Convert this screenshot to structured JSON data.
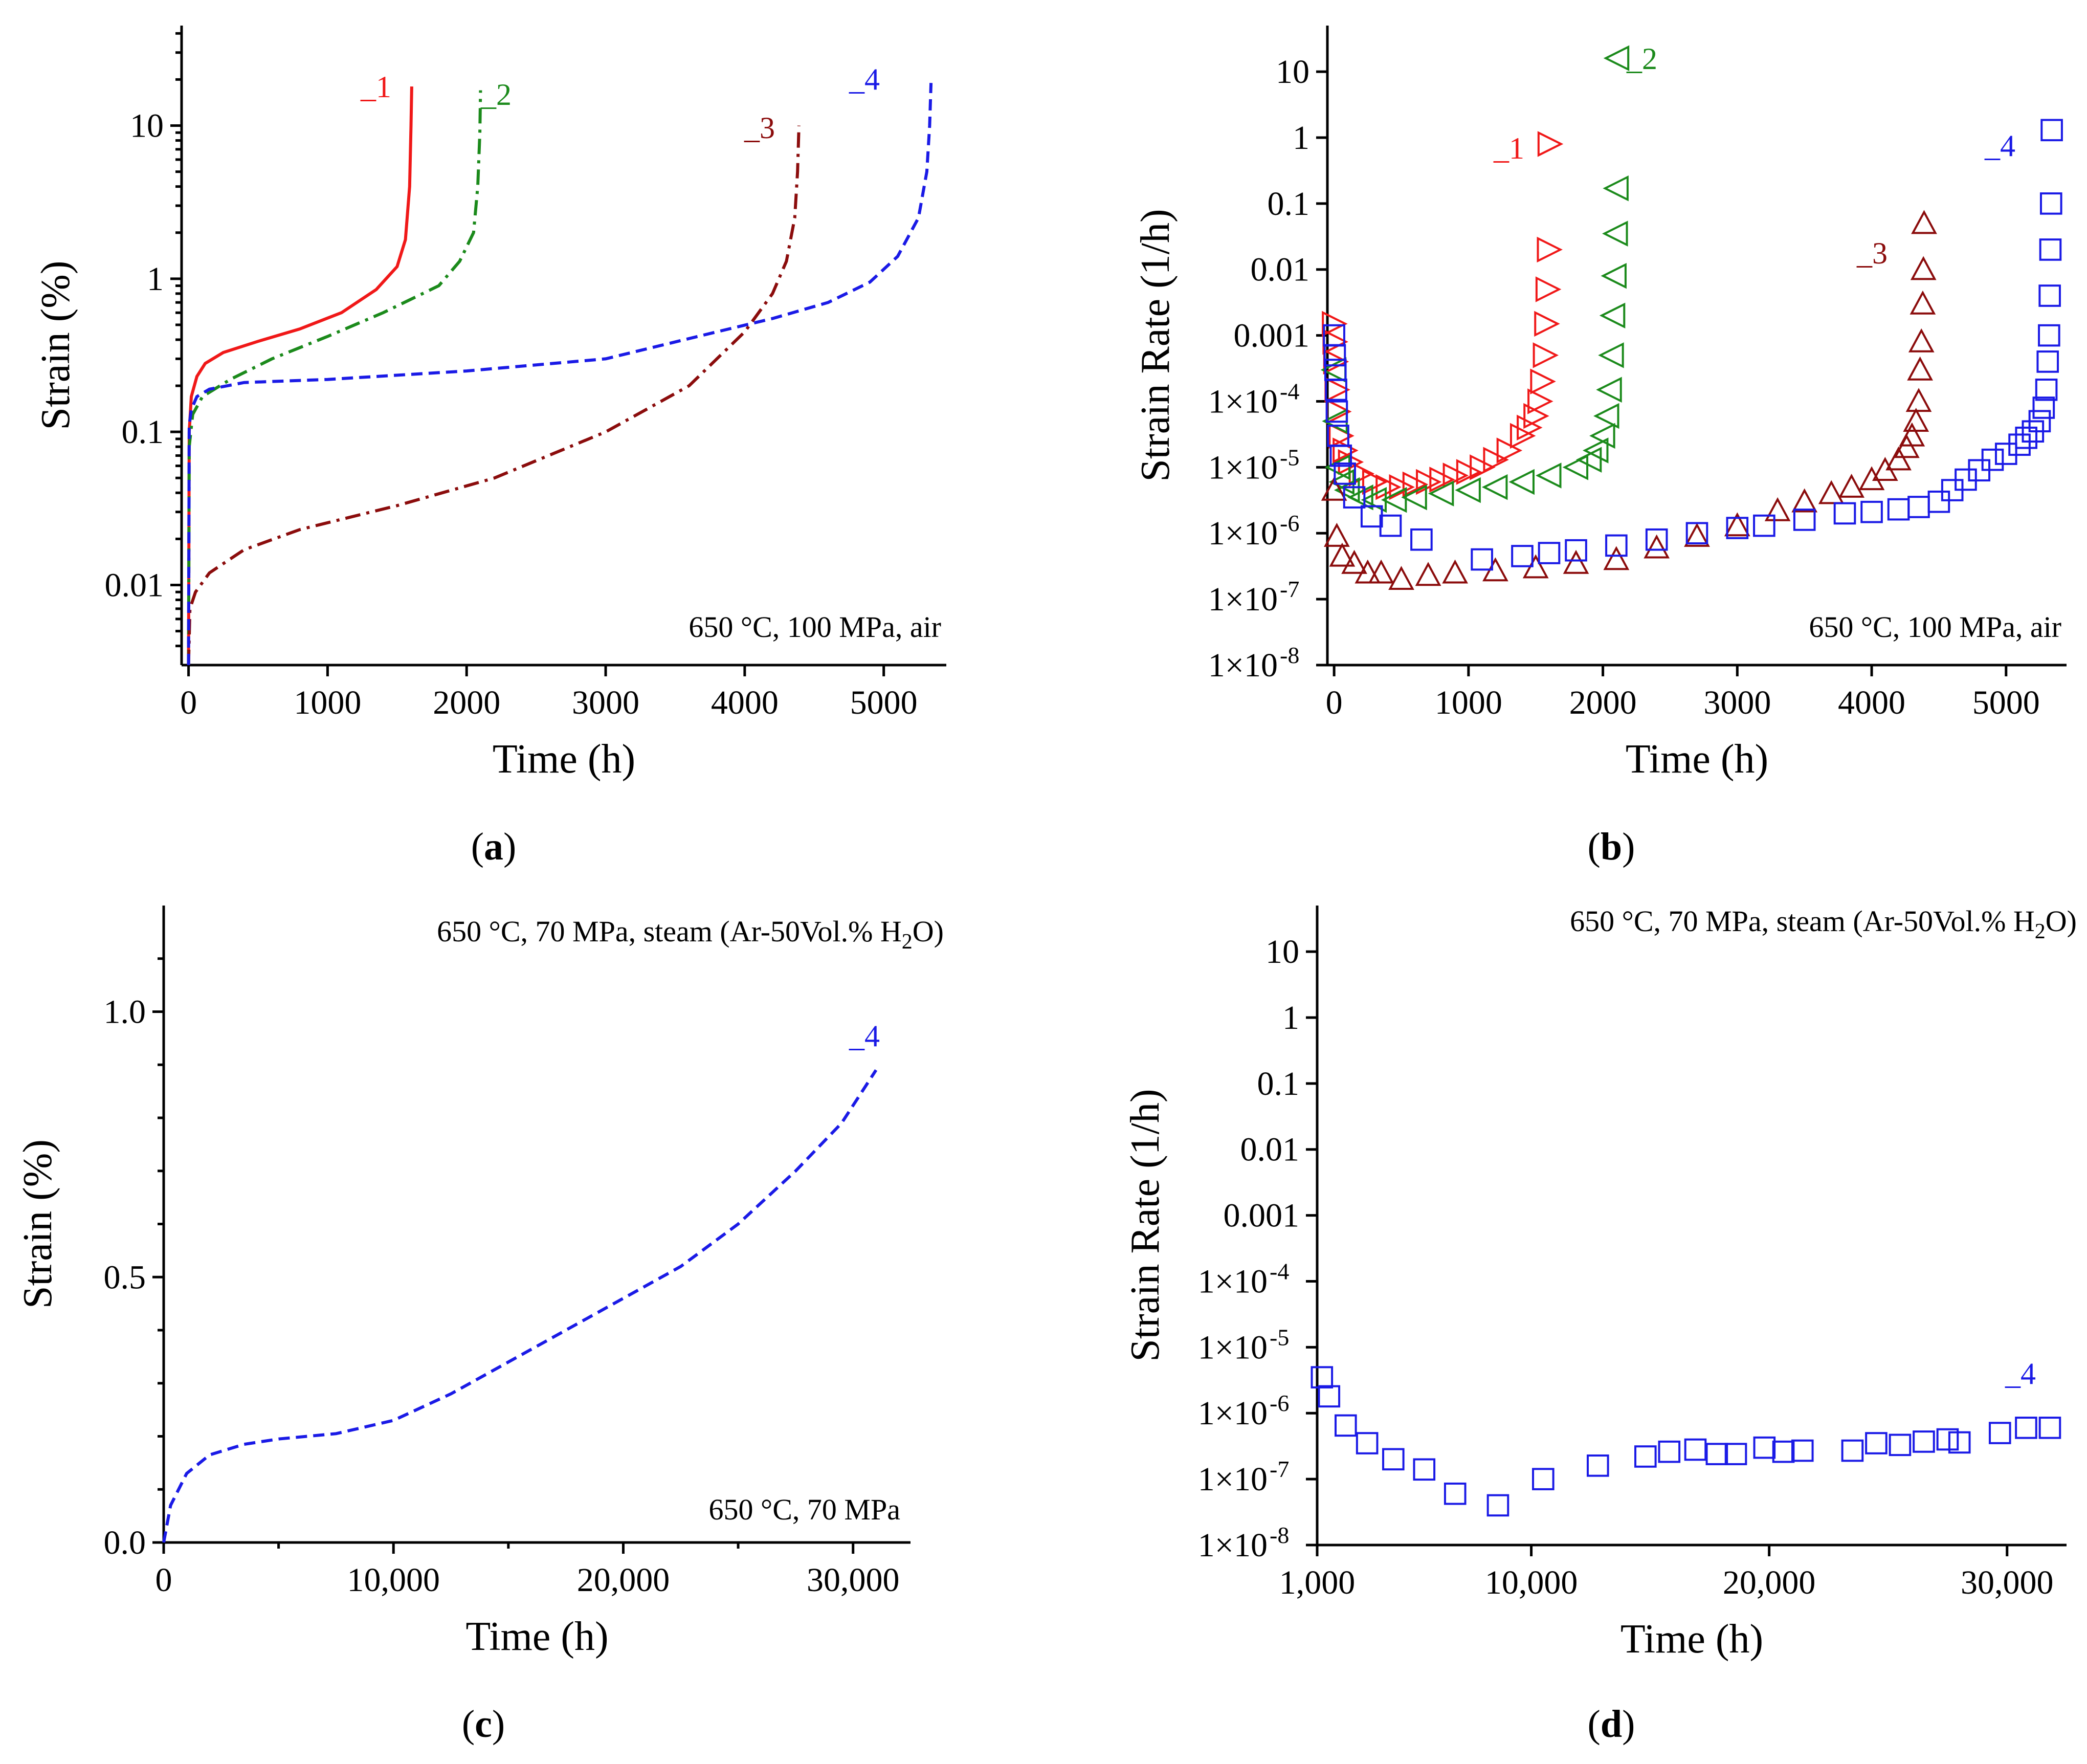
{
  "colors": {
    "series1": "#f01818",
    "series2": "#1b8a1b",
    "series3": "#8b0c0c",
    "series4": "#1a1ae6"
  },
  "chart_data": [
    {
      "id": "a",
      "type": "line",
      "panel_label": "a",
      "xlabel": "Time (h)",
      "ylabel": "Strain (%)",
      "xscale": "linear",
      "yscale": "log",
      "xlim": [
        -50,
        5450
      ],
      "ylim": [
        0.003,
        45
      ],
      "xticks": [
        0,
        1000,
        2000,
        3000,
        4000,
        5000
      ],
      "xtick_labels": [
        "0",
        "1000",
        "2000",
        "3000",
        "4000",
        "5000"
      ],
      "yticks": [
        0.01,
        0.1,
        1,
        10
      ],
      "ytick_labels": [
        "0.01",
        "0.1",
        "1",
        "10"
      ],
      "annotation": "650 °C, 100 MPa, air",
      "series": [
        {
          "name": "_1",
          "color": "series1",
          "dash": "solid",
          "x": [
            0,
            5,
            20,
            60,
            120,
            250,
            500,
            800,
            1100,
            1350,
            1500,
            1560,
            1590,
            1600,
            1605
          ],
          "y": [
            0.003,
            0.1,
            0.17,
            0.23,
            0.28,
            0.33,
            0.39,
            0.47,
            0.6,
            0.85,
            1.2,
            1.8,
            4,
            10,
            18
          ]
        },
        {
          "name": "_2",
          "color": "series2",
          "dash": "dashdot",
          "x": [
            0,
            5,
            30,
            100,
            300,
            600,
            1000,
            1400,
            1800,
            1950,
            2050,
            2080,
            2095,
            2100
          ],
          "y": [
            0.003,
            0.08,
            0.13,
            0.17,
            0.22,
            0.3,
            0.42,
            0.6,
            0.9,
            1.3,
            2,
            4,
            9,
            17
          ]
        },
        {
          "name": "_3",
          "color": "series3",
          "dash": "dashdot",
          "x": [
            0,
            10,
            50,
            150,
            400,
            800,
            1500,
            2200,
            3000,
            3600,
            4000,
            4200,
            4300,
            4360,
            4380,
            4390
          ],
          "y": [
            0.003,
            0.007,
            0.009,
            0.012,
            0.017,
            0.023,
            0.033,
            0.05,
            0.1,
            0.2,
            0.45,
            0.8,
            1.3,
            2.5,
            5,
            10
          ]
        },
        {
          "name": "_4",
          "color": "series4",
          "dash": "dashed",
          "x": [
            0,
            5,
            20,
            60,
            150,
            400,
            1000,
            2000,
            3000,
            3800,
            4200,
            4600,
            4900,
            5100,
            5250,
            5310,
            5330,
            5340
          ],
          "y": [
            0.003,
            0.11,
            0.14,
            0.17,
            0.19,
            0.21,
            0.22,
            0.25,
            0.3,
            0.45,
            0.55,
            0.7,
            0.95,
            1.4,
            2.5,
            5,
            10,
            19
          ]
        }
      ]
    },
    {
      "id": "b",
      "type": "scatter",
      "panel_label": "b",
      "xlabel": "Time (h)",
      "ylabel": "Strain Rate (1/h)",
      "xscale": "linear",
      "yscale": "log",
      "xlim": [
        -50,
        5450
      ],
      "ylim": [
        1e-08,
        50
      ],
      "xticks": [
        0,
        1000,
        2000,
        3000,
        4000,
        5000
      ],
      "xtick_labels": [
        "0",
        "1000",
        "2000",
        "3000",
        "4000",
        "5000"
      ],
      "yticks": [
        1e-08,
        1e-07,
        1e-06,
        1e-05,
        0.0001,
        0.001,
        0.01,
        0.1,
        1,
        10
      ],
      "ytick_labels": [
        "1×10",
        "1×10",
        "1×10",
        "1×10",
        "1×10",
        "0.001",
        "0.01",
        "0.1",
        "1",
        "10"
      ],
      "ytick_exponents": [
        "-8",
        "-7",
        "-6",
        "-5",
        "-4",
        "",
        "",
        "",
        "",
        ""
      ],
      "annotation": "650 °C, 100 MPa, air",
      "series": [
        {
          "name": "_1",
          "color": "series1",
          "marker": "triangle-right",
          "x": [
            0,
            5,
            10,
            20,
            30,
            50,
            80,
            120,
            200,
            300,
            400,
            500,
            600,
            700,
            800,
            900,
            1000,
            1100,
            1200,
            1300,
            1400,
            1450,
            1500,
            1530,
            1550,
            1570,
            1580,
            1590,
            1600,
            1605
          ],
          "y": [
            0.0015,
            0.0008,
            0.0004,
            0.00015,
            7e-05,
            3e-05,
            1.8e-05,
            1.2e-05,
            8e-06,
            6e-06,
            5e-06,
            5e-06,
            5.5e-06,
            6e-06,
            6.5e-06,
            7.5e-06,
            8.5e-06,
            1e-05,
            1.3e-05,
            1.8e-05,
            3e-05,
            4e-05,
            6e-05,
            0.0001,
            0.0002,
            0.0005,
            0.0015,
            0.005,
            0.02,
            0.8
          ]
        },
        {
          "name": "_2",
          "color": "series2",
          "marker": "triangle-left",
          "x": [
            0,
            10,
            30,
            60,
            100,
            200,
            300,
            450,
            600,
            800,
            1000,
            1200,
            1400,
            1600,
            1800,
            1900,
            1950,
            2000,
            2030,
            2050,
            2065,
            2075,
            2085,
            2095,
            2100,
            2105
          ],
          "y": [
            0.0003,
            5e-05,
            1e-05,
            6e-06,
            4.5e-06,
            3.5e-06,
            3.2e-06,
            3.2e-06,
            3.5e-06,
            4e-06,
            4.5e-06,
            5e-06,
            6e-06,
            7.5e-06,
            1e-05,
            1.3e-05,
            1.8e-05,
            3e-05,
            6e-05,
            0.00015,
            0.0005,
            0.002,
            0.008,
            0.035,
            0.17,
            16
          ]
        },
        {
          "name": "_3",
          "color": "series3",
          "marker": "triangle-up",
          "x": [
            0,
            20,
            60,
            150,
            250,
            350,
            500,
            700,
            900,
            1200,
            1500,
            1800,
            2100,
            2400,
            2700,
            3000,
            3300,
            3500,
            3700,
            3850,
            4000,
            4100,
            4200,
            4260,
            4300,
            4330,
            4350,
            4360,
            4370,
            4380,
            4385,
            4390
          ],
          "y": [
            4.5e-06,
            9e-07,
            4.5e-07,
            3.5e-07,
            2.5e-07,
            2.5e-07,
            2e-07,
            2.3e-07,
            2.5e-07,
            2.7e-07,
            3e-07,
            3.5e-07,
            4e-07,
            6e-07,
            9e-07,
            1.3e-06,
            2.2e-06,
            3e-06,
            4e-06,
            5e-06,
            6.5e-06,
            9e-06,
            1.3e-05,
            2e-05,
            3e-05,
            5e-05,
            0.0001,
            0.0003,
            0.0008,
            0.003,
            0.01,
            0.05
          ]
        },
        {
          "name": "_4",
          "color": "series4",
          "marker": "square",
          "x": [
            0,
            5,
            10,
            15,
            20,
            30,
            50,
            80,
            150,
            280,
            420,
            650,
            1100,
            1400,
            1600,
            1800,
            2100,
            2400,
            2700,
            3000,
            3200,
            3500,
            3800,
            4000,
            4200,
            4350,
            4500,
            4600,
            4700,
            4800,
            4900,
            5000,
            5100,
            5150,
            5200,
            5250,
            5280,
            5300,
            5310,
            5320,
            5325,
            5330,
            5335,
            5340
          ],
          "y": [
            0.001,
            0.0005,
            0.0003,
            0.00015,
            7e-05,
            3e-05,
            1.5e-05,
            8e-06,
            3.5e-06,
            1.8e-06,
            1.3e-06,
            8e-07,
            4e-07,
            4.5e-07,
            5e-07,
            5.5e-07,
            6.5e-07,
            8e-07,
            1e-06,
            1.2e-06,
            1.3e-06,
            1.6e-06,
            2e-06,
            2.1e-06,
            2.3e-06,
            2.5e-06,
            3e-06,
            4.5e-06,
            6.5e-06,
            9e-06,
            1.3e-05,
            1.6e-05,
            2.2e-05,
            2.8e-05,
            3.5e-05,
            5e-05,
            8e-05,
            0.00015,
            0.0004,
            0.001,
            0.004,
            0.02,
            0.1,
            1.3
          ]
        }
      ]
    },
    {
      "id": "c",
      "type": "line",
      "panel_label": "c",
      "xlabel": "Time (h)",
      "ylabel": "Strain (%)",
      "xscale": "linear",
      "yscale": "linear",
      "xlim": [
        0,
        32500
      ],
      "ylim": [
        0,
        1.2
      ],
      "xticks": [
        0,
        10000,
        20000,
        30000
      ],
      "xtick_labels": [
        "0",
        "10,000",
        "20,000",
        "30,000"
      ],
      "xticks_minor": [
        5000,
        15000,
        25000
      ],
      "yticks": [
        0,
        0.5,
        1.0
      ],
      "ytick_labels": [
        "0.0",
        "0.5",
        "1.0"
      ],
      "yticks_minor": [
        0.1,
        0.2,
        0.3,
        0.4,
        0.6,
        0.7,
        0.8,
        0.9,
        1.1
      ],
      "annotation_top": "650 °C, 70 MPa, steam (Ar-50Vol.% H",
      "annotation_top_sub": "2",
      "annotation_top_end": "O)",
      "annotation": "650 °C, 70 MPa",
      "series": [
        {
          "name": "_4",
          "color": "series4",
          "dash": "dashed",
          "x": [
            0,
            300,
            1000,
            2000,
            3500,
            5000,
            7500,
            10000,
            12500,
            15000,
            17500,
            20000,
            22500,
            25000,
            27500,
            29500,
            31000
          ],
          "y": [
            0,
            0.07,
            0.13,
            0.165,
            0.185,
            0.195,
            0.205,
            0.23,
            0.28,
            0.34,
            0.4,
            0.46,
            0.52,
            0.6,
            0.7,
            0.79,
            0.89
          ]
        }
      ]
    },
    {
      "id": "d",
      "type": "scatter",
      "panel_label": "d",
      "xlabel": "Time (h)",
      "ylabel": "Strain Rate (1/h)",
      "xscale": "linear",
      "yscale": "log",
      "xlim": [
        1000,
        32500
      ],
      "ylim": [
        1e-08,
        50
      ],
      "xticks": [
        1000,
        10000,
        20000,
        30000
      ],
      "xtick_labels": [
        "1,000",
        "10,000",
        "20,000",
        "30,000"
      ],
      "yticks": [
        1e-08,
        1e-07,
        1e-06,
        1e-05,
        0.0001,
        0.001,
        0.01,
        0.1,
        1,
        10
      ],
      "ytick_labels": [
        "1×10",
        "1×10",
        "1×10",
        "1×10",
        "1×10",
        "0.001",
        "0.01",
        "0.1",
        "1",
        "10"
      ],
      "ytick_exponents": [
        "-8",
        "-7",
        "-6",
        "-5",
        "-4",
        "",
        "",
        "",
        "",
        ""
      ],
      "annotation_top": "650 °C, 70 MPa, steam (Ar-50Vol.% H",
      "annotation_top_sub": "2",
      "annotation_top_end": "O)",
      "series": [
        {
          "name": "_4",
          "color": "series4",
          "marker": "square",
          "x": [
            1200,
            1500,
            2200,
            3100,
            4200,
            5500,
            6800,
            8600,
            10500,
            12800,
            14800,
            15800,
            16900,
            17800,
            18600,
            19800,
            20600,
            21400,
            23500,
            24500,
            25500,
            26500,
            27500,
            28000,
            29700,
            30800,
            31800
          ],
          "y": [
            3.5e-06,
            1.8e-06,
            6.5e-07,
            3.5e-07,
            2e-07,
            1.4e-07,
            6e-08,
            4e-08,
            1e-07,
            1.6e-07,
            2.2e-07,
            2.6e-07,
            2.8e-07,
            2.4e-07,
            2.4e-07,
            3e-07,
            2.6e-07,
            2.7e-07,
            2.7e-07,
            3.5e-07,
            3.3e-07,
            3.7e-07,
            4e-07,
            3.6e-07,
            5e-07,
            6e-07,
            6e-07
          ]
        }
      ]
    }
  ]
}
